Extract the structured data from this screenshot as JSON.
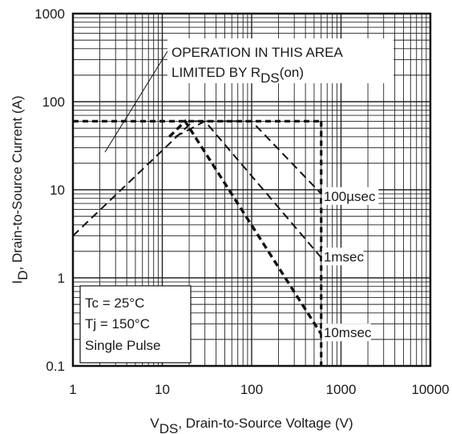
{
  "chart_data": {
    "type": "line",
    "title": "",
    "xscale": "log",
    "yscale": "log",
    "xlim": [
      1,
      10000
    ],
    "ylim": [
      0.1,
      1000
    ],
    "grid": true,
    "x_ticks": [
      {
        "value": 1,
        "label": "1"
      },
      {
        "value": 10,
        "label": "10"
      },
      {
        "value": 100,
        "label": "100"
      },
      {
        "value": 1000,
        "label": "1000"
      },
      {
        "value": 10000,
        "label": "10000"
      }
    ],
    "y_ticks": [
      {
        "value": 0.1,
        "label": "0.1"
      },
      {
        "value": 1,
        "label": "1"
      },
      {
        "value": 10,
        "label": "10"
      },
      {
        "value": 100,
        "label": "100"
      },
      {
        "value": 1000,
        "label": "1000"
      }
    ],
    "xlabel": {
      "main": "V",
      "sub": "DS",
      "rest": ", Drain-to-Source Voltage (V)"
    },
    "ylabel": {
      "main": "I",
      "sub": "D",
      "rest": ",  Drain-to-Source Current (A)"
    },
    "boundary_limits": {
      "current_limit_A": 60,
      "voltage_limit_V": 600
    },
    "series": [
      {
        "name": "100µsec",
        "points": [
          [
            1,
            3
          ],
          [
            22,
            60
          ],
          [
            100,
            60
          ],
          [
            600,
            9
          ]
        ]
      },
      {
        "name": "1msec",
        "points": [
          [
            14,
            40
          ],
          [
            30,
            60
          ],
          [
            600,
            1.7
          ]
        ]
      },
      {
        "name": "10msec",
        "points": [
          [
            12,
            40
          ],
          [
            18,
            60
          ],
          [
            600,
            0.23
          ]
        ]
      }
    ],
    "series_labels": [
      {
        "text": "100µsec",
        "x": 640,
        "y": 8.5
      },
      {
        "text": "1msec",
        "x": 640,
        "y": 1.75
      },
      {
        "text": "10msec",
        "x": 640,
        "y": 0.24
      }
    ],
    "annotation": {
      "line1": "OPERATION IN THIS AREA",
      "line2_main": "LIMITED BY R",
      "line2_sub": "DS",
      "line2_end": "(on)"
    },
    "conditions": [
      "Tc = 25°C",
      "Tj = 150°C",
      "Single Pulse"
    ]
  }
}
